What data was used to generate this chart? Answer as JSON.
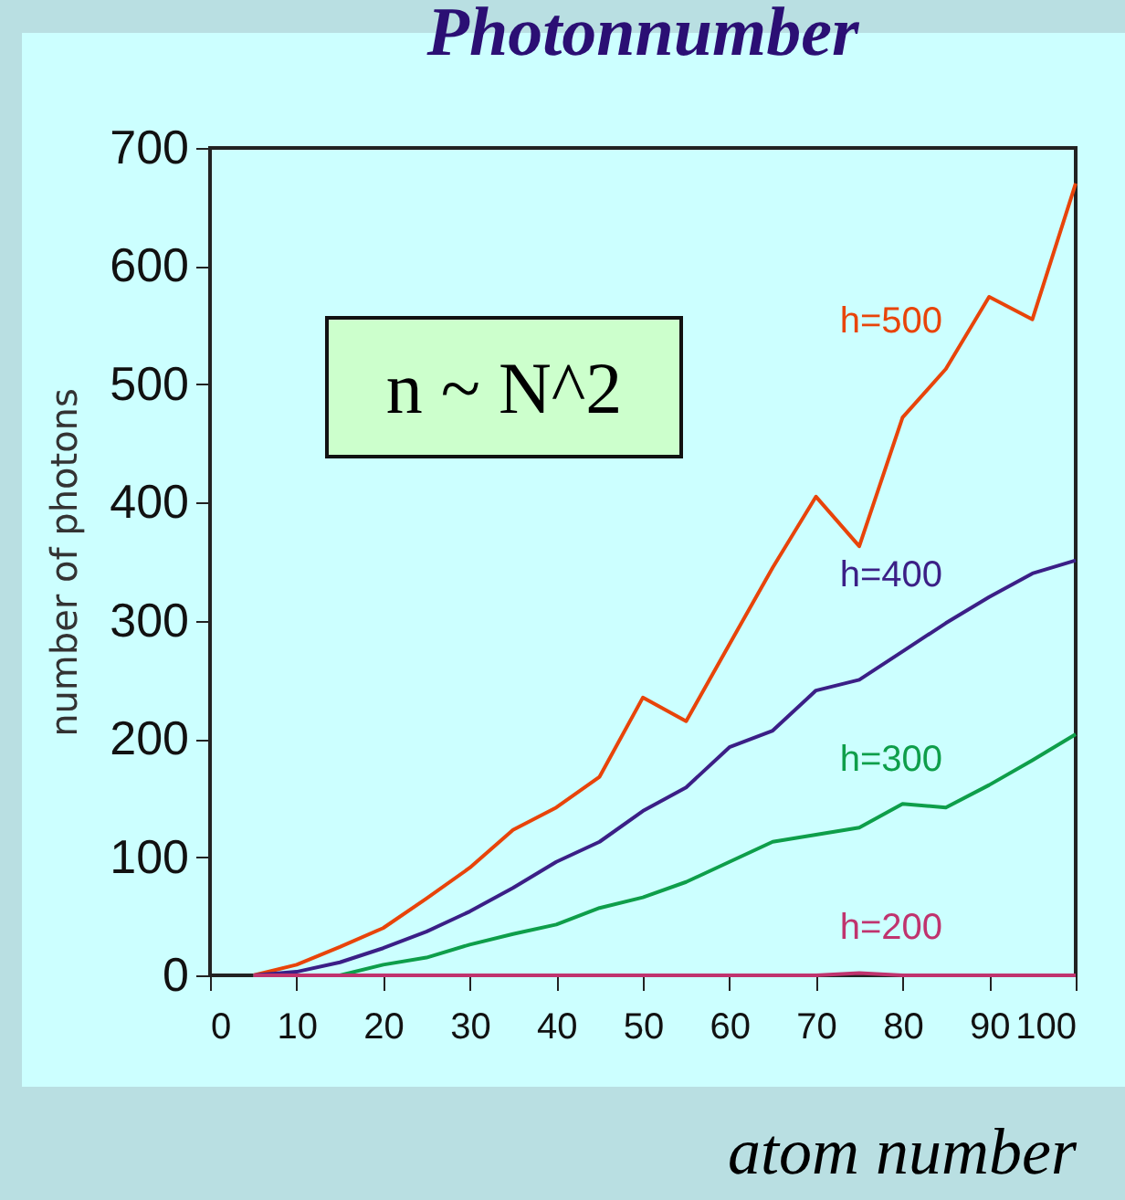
{
  "chart_data": {
    "type": "line",
    "title": "Photonnumber",
    "xlabel": "atom number",
    "ylabel": "number of photons",
    "x": [
      5,
      10,
      15,
      20,
      25,
      30,
      35,
      40,
      45,
      50,
      55,
      60,
      65,
      70,
      75,
      80,
      85,
      90,
      95,
      100
    ],
    "series": [
      {
        "name": "h=500",
        "color": "#e8440a",
        "values": [
          0,
          9,
          24,
          40,
          65,
          91,
          123,
          142,
          168,
          235,
          215,
          280,
          345,
          405,
          363,
          472,
          513,
          574,
          555,
          670
        ]
      },
      {
        "name": "h=400",
        "color": "#3b1f86",
        "values": [
          0,
          3,
          11,
          23,
          37,
          54,
          74,
          96,
          113,
          139,
          159,
          193,
          207,
          241,
          250,
          274,
          298,
          320,
          340,
          351
        ]
      },
      {
        "name": "h=300",
        "color": "#0e9e4a",
        "values": [
          0,
          0,
          0,
          9,
          15,
          26,
          35,
          43,
          57,
          66,
          79,
          96,
          113,
          119,
          125,
          145,
          142,
          161,
          182,
          204
        ]
      },
      {
        "name": "h=200",
        "color": "#c0336e",
        "values": [
          0,
          0,
          0,
          0,
          0,
          0,
          0,
          0,
          0,
          0,
          0,
          0,
          0,
          0,
          2,
          0,
          0,
          0,
          0,
          0
        ]
      }
    ],
    "xlim": [
      0,
      100
    ],
    "xticks": [
      0,
      10,
      20,
      30,
      40,
      50,
      60,
      70,
      80,
      90,
      100
    ],
    "ylim": [
      0,
      700
    ],
    "yticks": [
      0,
      100,
      200,
      300,
      400,
      500,
      600,
      700
    ],
    "grid": false,
    "legend": false,
    "marker": "none",
    "line_style": "solid",
    "annotations": [
      "n ~ N^2"
    ]
  }
}
